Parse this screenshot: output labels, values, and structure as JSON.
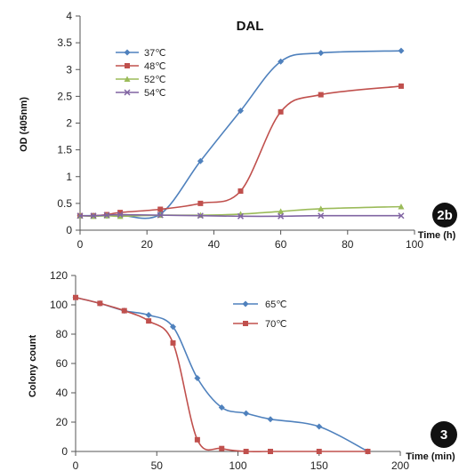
{
  "chart_data": [
    {
      "type": "line",
      "title": "DAL",
      "xlabel": "Time (h)",
      "ylabel": "OD (405nm)",
      "xlim": [
        0,
        100
      ],
      "ylim": [
        0,
        4
      ],
      "xticks": [
        0,
        20,
        40,
        60,
        80,
        100
      ],
      "yticks": [
        0,
        0.5,
        1,
        1.5,
        2,
        2.5,
        3,
        3.5,
        4
      ],
      "xtick_labels": [
        "0",
        "20",
        "40",
        "60",
        "80",
        "100"
      ],
      "ytick_labels": [
        "0",
        "0.5",
        "1",
        "1.5",
        "2",
        "2.5",
        "3",
        "3.5",
        "4"
      ],
      "grid": false,
      "legend": "top-left",
      "badge": "2b",
      "series": [
        {
          "name": "37℃",
          "color": "#4f81bd",
          "marker": "diamond",
          "x": [
            0,
            4,
            8,
            12,
            24,
            36,
            48,
            60,
            72,
            96
          ],
          "y": [
            0.27,
            0.27,
            0.27,
            0.28,
            0.3,
            1.29,
            2.23,
            3.15,
            3.31,
            3.35
          ]
        },
        {
          "name": "48℃",
          "color": "#c0504d",
          "marker": "square",
          "x": [
            0,
            4,
            8,
            12,
            24,
            36,
            48,
            60,
            72,
            96
          ],
          "y": [
            0.27,
            0.27,
            0.29,
            0.33,
            0.39,
            0.5,
            0.73,
            2.21,
            2.53,
            2.69
          ]
        },
        {
          "name": "52℃",
          "color": "#9bbb59",
          "marker": "triangle",
          "x": [
            0,
            4,
            8,
            12,
            24,
            36,
            48,
            60,
            72,
            96
          ],
          "y": [
            0.27,
            0.26,
            0.27,
            0.26,
            0.28,
            0.28,
            0.3,
            0.35,
            0.4,
            0.44
          ]
        },
        {
          "name": "54℃",
          "color": "#8064a2",
          "marker": "x",
          "x": [
            0,
            4,
            8,
            12,
            24,
            36,
            48,
            60,
            72,
            96
          ],
          "y": [
            0.27,
            0.27,
            0.28,
            0.29,
            0.28,
            0.27,
            0.26,
            0.26,
            0.27,
            0.27
          ]
        }
      ]
    },
    {
      "type": "line",
      "title": "",
      "xlabel": "Time (min)",
      "ylabel": "Colony count",
      "xlim": [
        0,
        200
      ],
      "ylim": [
        0,
        120
      ],
      "xticks": [
        0,
        50,
        100,
        150,
        200
      ],
      "yticks": [
        0,
        20,
        40,
        60,
        80,
        100,
        120
      ],
      "xtick_labels": [
        "0",
        "50",
        "100",
        "150",
        "200"
      ],
      "ytick_labels": [
        "0",
        "20",
        "40",
        "60",
        "80",
        "100",
        "120"
      ],
      "grid": false,
      "legend": "top-center",
      "badge": "3",
      "series": [
        {
          "name": "65℃",
          "color": "#4f81bd",
          "marker": "diamond",
          "x": [
            0,
            15,
            30,
            45,
            60,
            75,
            90,
            105,
            120,
            150,
            180
          ],
          "y": [
            105,
            101,
            96,
            93,
            85,
            50,
            30,
            26,
            22,
            17,
            0
          ]
        },
        {
          "name": "70℃",
          "color": "#c0504d",
          "marker": "square",
          "x": [
            0,
            15,
            30,
            45,
            60,
            75,
            90,
            105,
            120,
            150,
            180
          ],
          "y": [
            105,
            101,
            96,
            89,
            74,
            8,
            2,
            0,
            0,
            0,
            0
          ]
        }
      ]
    }
  ]
}
